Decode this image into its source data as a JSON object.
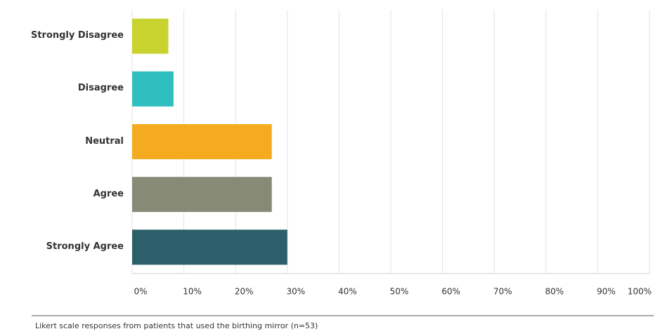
{
  "chart_data": {
    "type": "bar",
    "orientation": "horizontal",
    "categories": [
      "Strongly Disagree",
      "Disagree",
      "Neutral",
      "Agree",
      "Strongly Agree"
    ],
    "values": [
      7,
      8,
      27,
      27,
      30
    ],
    "colors": [
      "#c9d32f",
      "#2fbfbf",
      "#f5ab1f",
      "#888a78",
      "#2d5f6a"
    ],
    "xlim": [
      0,
      100
    ],
    "xticks": [
      {
        "value": 0,
        "label": "0%"
      },
      {
        "value": 10,
        "label": "10%"
      },
      {
        "value": 20,
        "label": "20%"
      },
      {
        "value": 30,
        "label": "30%"
      },
      {
        "value": 40,
        "label": "40%"
      },
      {
        "value": 50,
        "label": "50%"
      },
      {
        "value": 60,
        "label": "60%"
      },
      {
        "value": 70,
        "label": "70%"
      },
      {
        "value": 80,
        "label": "80%"
      },
      {
        "value": 90,
        "label": "90%"
      },
      {
        "value": 100,
        "label": "100%"
      }
    ],
    "grid": true,
    "caption": "Likert scale responses from patients that used the birthing mirror (n=53)"
  }
}
